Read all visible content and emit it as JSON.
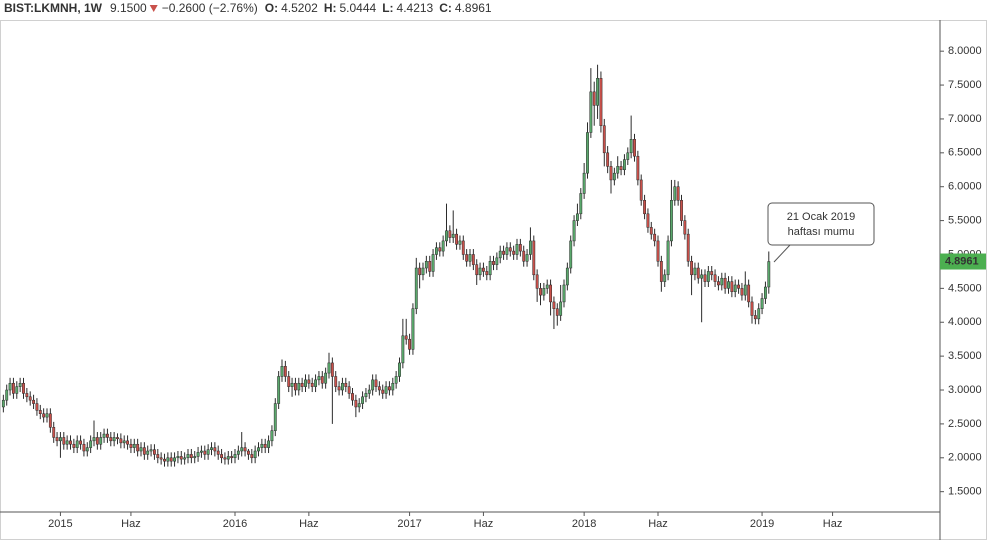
{
  "chart_data": {
    "type": "candlestick",
    "header": {
      "symbol": "BIST:LKMNH, 1W",
      "price": "9.1500",
      "change": "−0.2600 (−2.76%)",
      "fields": [
        {
          "label": "O:",
          "value": "4.5202"
        },
        {
          "label": "H:",
          "value": "5.0444"
        },
        {
          "label": "L:",
          "value": "4.4213"
        },
        {
          "label": "C:",
          "value": "4.8961"
        }
      ]
    },
    "annotation": [
      "21 Ocak 2019",
      "haftası mumu"
    ],
    "up_color": "#5aa86c",
    "down_color": "#c9514b",
    "outline_color": "#2b2b2b",
    "last_price_color": "#4caf50",
    "xlim": [
      -1,
      279
    ],
    "xticks": [
      {
        "value": 17,
        "label": "2015"
      },
      {
        "value": 38,
        "label": "Haz"
      },
      {
        "value": 69,
        "label": "2016"
      },
      {
        "value": 91,
        "label": "Haz"
      },
      {
        "value": 121,
        "label": "2017"
      },
      {
        "value": 143,
        "label": "Haz"
      },
      {
        "value": 173,
        "label": "2018"
      },
      {
        "value": 195,
        "label": "Haz"
      },
      {
        "value": 226,
        "label": "2019"
      },
      {
        "value": 247,
        "label": "Haz"
      }
    ],
    "ylim": [
      1.2,
      8.46
    ],
    "yticks": [
      {
        "value": 1.5,
        "label": "1.5000"
      },
      {
        "value": 2,
        "label": "2.0000"
      },
      {
        "value": 2.5,
        "label": "2.5000"
      },
      {
        "value": 3,
        "label": "3.0000"
      },
      {
        "value": 3.5,
        "label": "3.5000"
      },
      {
        "value": 4,
        "label": "4.0000"
      },
      {
        "value": 4.5,
        "label": "4.5000"
      },
      {
        "value": 5,
        "label": "5.0000"
      },
      {
        "value": 5.5,
        "label": "5.5000"
      },
      {
        "value": 6,
        "label": "6.0000"
      },
      {
        "value": 6.5,
        "label": "6.5000"
      },
      {
        "value": 7,
        "label": "7.0000"
      },
      {
        "value": 7.5,
        "label": "7.5000"
      },
      {
        "value": 8,
        "label": "8.0000"
      }
    ],
    "open": [
      2.75,
      2.85,
      3.0,
      3.1,
      2.95,
      3.05,
      3.1,
      2.95,
      2.9,
      2.85,
      2.8,
      2.7,
      2.65,
      2.6,
      2.65,
      2.45,
      2.3,
      2.25,
      2.3,
      2.2,
      2.25,
      2.2,
      2.15,
      2.25,
      2.2,
      2.1,
      2.15,
      2.25,
      2.3,
      2.2,
      2.3,
      2.35,
      2.3,
      2.25,
      2.3,
      2.28,
      2.22,
      2.25,
      2.2,
      2.15,
      2.2,
      2.1,
      2.15,
      2.05,
      2.1,
      2.12,
      2.05,
      2.0,
      1.98,
      1.95,
      2.0,
      1.95,
      2.0,
      2.02,
      1.98,
      2.0,
      2.05,
      2.0,
      2.02,
      2.08,
      2.1,
      2.05,
      2.12,
      2.15,
      2.1,
      2.05,
      2.0,
      1.98,
      2.02,
      2.0,
      2.05,
      2.1,
      2.15,
      2.1,
      2.05,
      2.0,
      2.1,
      2.15,
      2.2,
      2.15,
      2.25,
      2.4,
      2.8,
      3.2,
      3.35,
      3.2,
      3.05,
      3.1,
      3.0,
      3.1,
      3.05,
      3.15,
      3.1,
      3.05,
      3.15,
      3.2,
      3.1,
      3.25,
      3.4,
      3.2,
      3.05,
      3.0,
      3.1,
      3.05,
      2.95,
      2.85,
      2.75,
      2.8,
      2.9,
      2.95,
      3.0,
      3.15,
      3.05,
      3.0,
      2.95,
      3.05,
      3.0,
      3.1,
      3.2,
      3.4,
      3.8,
      3.75,
      3.6,
      4.2,
      4.8,
      4.7,
      4.8,
      4.9,
      4.75,
      5.0,
      5.1,
      5.05,
      5.2,
      5.35,
      5.25,
      5.3,
      5.15,
      5.2,
      5.0,
      4.9,
      5.0,
      4.85,
      4.7,
      4.8,
      4.75,
      4.7,
      4.9,
      4.85,
      4.95,
      5.05,
      5.0,
      5.1,
      5.05,
      5.0,
      5.15,
      5.05,
      4.9,
      5.0,
      5.2,
      4.7,
      4.5,
      4.4,
      4.5,
      4.55,
      4.3,
      4.2,
      4.1,
      4.3,
      4.55,
      4.8,
      5.2,
      5.5,
      5.6,
      5.9,
      6.2,
      6.8,
      7.4,
      7.2,
      7.6,
      6.9,
      6.5,
      6.3,
      6.1,
      6.2,
      6.3,
      6.25,
      6.4,
      6.5,
      6.7,
      6.45,
      6.1,
      5.8,
      5.6,
      5.4,
      5.3,
      5.2,
      4.9,
      4.6,
      4.7,
      5.2,
      5.8,
      6.0,
      5.8,
      5.5,
      5.3,
      4.9,
      4.7,
      4.8,
      4.65,
      4.7,
      4.6,
      4.75,
      4.7,
      4.6,
      4.55,
      4.65,
      4.5,
      4.6,
      4.45,
      4.55,
      4.5,
      4.4,
      4.55,
      4.3,
      4.1,
      4.05,
      4.2,
      4.35,
      4.5202
    ],
    "high": [
      2.93,
      3.08,
      3.18,
      3.18,
      3.13,
      3.18,
      3.18,
      3.03,
      2.98,
      2.93,
      2.88,
      2.78,
      2.73,
      2.73,
      2.73,
      2.53,
      2.38,
      2.38,
      2.38,
      2.33,
      2.33,
      2.28,
      2.33,
      2.33,
      2.28,
      2.23,
      2.33,
      2.55,
      2.38,
      2.38,
      2.43,
      2.43,
      2.38,
      2.38,
      2.36,
      2.36,
      2.33,
      2.33,
      2.28,
      2.28,
      2.28,
      2.23,
      2.23,
      2.18,
      2.2,
      2.2,
      2.13,
      2.08,
      2.06,
      2.08,
      2.08,
      2.08,
      2.1,
      2.1,
      2.08,
      2.13,
      2.13,
      2.1,
      2.16,
      2.18,
      2.18,
      2.2,
      2.23,
      2.23,
      2.18,
      2.13,
      2.08,
      2.1,
      2.1,
      2.13,
      2.18,
      2.38,
      2.23,
      2.13,
      2.13,
      2.18,
      2.23,
      2.28,
      2.28,
      2.33,
      2.48,
      2.88,
      3.28,
      3.45,
      3.43,
      3.28,
      3.18,
      3.18,
      3.18,
      3.18,
      3.23,
      3.23,
      3.18,
      3.23,
      3.28,
      3.28,
      3.33,
      3.55,
      3.48,
      3.28,
      3.13,
      3.18,
      3.18,
      3.13,
      3.03,
      2.93,
      2.88,
      2.98,
      3.03,
      3.08,
      3.23,
      3.23,
      3.13,
      3.08,
      3.13,
      3.13,
      3.18,
      3.28,
      3.48,
      4.05,
      4.05,
      3.83,
      4.28,
      4.95,
      4.88,
      4.88,
      4.98,
      4.98,
      5.08,
      5.18,
      5.18,
      5.28,
      5.75,
      5.43,
      5.65,
      5.38,
      5.28,
      5.28,
      5.08,
      5.08,
      5.08,
      4.93,
      4.88,
      4.88,
      4.83,
      4.98,
      4.98,
      5.03,
      5.13,
      5.13,
      5.18,
      5.18,
      5.13,
      5.23,
      5.23,
      5.13,
      5.08,
      5.4,
      5.28,
      4.78,
      4.58,
      4.58,
      4.63,
      4.63,
      4.38,
      4.28,
      4.55,
      4.63,
      4.88,
      5.28,
      5.58,
      5.75,
      5.98,
      6.35,
      6.95,
      7.75,
      7.55,
      7.8,
      7.7,
      7.0,
      6.6,
      6.38,
      6.28,
      6.45,
      6.38,
      6.48,
      6.58,
      7.05,
      6.78,
      6.53,
      6.18,
      5.88,
      5.68,
      5.48,
      5.38,
      5.28,
      4.98,
      4.78,
      5.28,
      6.1,
      6.1,
      6.08,
      5.88,
      5.58,
      5.38,
      4.98,
      4.88,
      4.88,
      4.78,
      4.78,
      4.83,
      4.83,
      4.78,
      4.68,
      4.73,
      4.73,
      4.68,
      4.68,
      4.63,
      4.63,
      4.58,
      4.75,
      4.63,
      4.38,
      4.18,
      4.28,
      4.43,
      4.6,
      5.0444
    ],
    "low": [
      2.67,
      2.77,
      2.92,
      2.87,
      2.87,
      2.97,
      2.87,
      2.82,
      2.77,
      2.72,
      2.62,
      2.57,
      2.52,
      2.52,
      2.37,
      2.22,
      2.17,
      2.0,
      2.12,
      2.12,
      2.12,
      2.07,
      2.07,
      2.12,
      2.02,
      2.02,
      2.07,
      2.17,
      2.12,
      2.12,
      2.22,
      2.22,
      2.17,
      2.17,
      2.2,
      2.14,
      2.14,
      2.12,
      2.07,
      2.07,
      2.02,
      2.02,
      1.97,
      1.97,
      2.02,
      1.97,
      1.92,
      1.9,
      1.87,
      1.87,
      1.87,
      1.87,
      1.92,
      1.9,
      1.9,
      1.92,
      1.92,
      1.92,
      1.94,
      2.0,
      1.97,
      1.97,
      2.04,
      2.02,
      1.97,
      1.92,
      1.9,
      1.9,
      1.92,
      1.92,
      1.97,
      2.02,
      2.02,
      1.97,
      1.92,
      1.92,
      2.02,
      2.07,
      2.07,
      2.07,
      2.17,
      2.32,
      2.72,
      3.12,
      3.12,
      2.97,
      2.9,
      2.92,
      2.92,
      2.97,
      2.97,
      3.02,
      2.97,
      2.97,
      3.07,
      3.02,
      3.02,
      3.17,
      2.5,
      2.97,
      2.92,
      2.92,
      2.97,
      2.87,
      2.77,
      2.6,
      2.67,
      2.72,
      2.82,
      2.87,
      2.92,
      2.97,
      2.92,
      2.87,
      2.87,
      2.92,
      2.92,
      3.02,
      3.12,
      3.32,
      3.67,
      3.52,
      3.52,
      4.12,
      4.5,
      4.62,
      4.72,
      4.67,
      4.67,
      4.92,
      4.97,
      4.97,
      5.12,
      5.17,
      5.17,
      5.07,
      5.07,
      4.92,
      4.82,
      4.82,
      4.77,
      4.55,
      4.62,
      4.67,
      4.62,
      4.62,
      4.77,
      4.77,
      4.87,
      4.92,
      4.92,
      4.97,
      4.92,
      4.92,
      4.97,
      4.82,
      4.82,
      4.92,
      4.62,
      4.3,
      4.25,
      4.32,
      4.42,
      4.1,
      3.9,
      3.95,
      4.02,
      4.22,
      4.47,
      4.72,
      5.12,
      5.42,
      5.52,
      5.82,
      6.12,
      6.72,
      6.9,
      7.0,
      6.8,
      6.3,
      6.2,
      5.9,
      6.02,
      6.12,
      6.17,
      6.17,
      6.32,
      6.42,
      6.37,
      6.02,
      5.72,
      5.52,
      5.32,
      5.22,
      5.12,
      4.82,
      4.45,
      4.52,
      4.62,
      5.12,
      5.72,
      5.72,
      5.42,
      5.22,
      4.82,
      4.4,
      4.62,
      4.57,
      4.0,
      4.52,
      4.52,
      4.62,
      4.52,
      4.47,
      4.47,
      4.42,
      4.42,
      4.37,
      4.37,
      4.42,
      4.32,
      4.32,
      4.22,
      3.98,
      3.97,
      3.97,
      4.12,
      4.27,
      4.4213
    ],
    "close": [
      2.85,
      3.0,
      3.1,
      2.95,
      3.05,
      3.1,
      2.95,
      2.9,
      2.85,
      2.8,
      2.7,
      2.65,
      2.6,
      2.65,
      2.45,
      2.3,
      2.25,
      2.3,
      2.2,
      2.25,
      2.2,
      2.15,
      2.25,
      2.2,
      2.1,
      2.15,
      2.25,
      2.3,
      2.2,
      2.3,
      2.35,
      2.3,
      2.25,
      2.3,
      2.28,
      2.22,
      2.25,
      2.2,
      2.15,
      2.2,
      2.1,
      2.15,
      2.05,
      2.1,
      2.12,
      2.05,
      2.0,
      1.98,
      1.95,
      2.0,
      1.95,
      2.0,
      2.02,
      1.98,
      2.0,
      2.05,
      2.0,
      2.02,
      2.08,
      2.1,
      2.05,
      2.12,
      2.15,
      2.1,
      2.05,
      2.0,
      1.98,
      2.02,
      2.0,
      2.05,
      2.1,
      2.15,
      2.1,
      2.05,
      2.0,
      2.1,
      2.15,
      2.2,
      2.15,
      2.25,
      2.4,
      2.8,
      3.2,
      3.35,
      3.2,
      3.05,
      3.1,
      3.0,
      3.1,
      3.05,
      3.15,
      3.1,
      3.05,
      3.15,
      3.2,
      3.1,
      3.25,
      3.4,
      3.2,
      3.05,
      3.0,
      3.1,
      3.05,
      2.95,
      2.85,
      2.75,
      2.8,
      2.9,
      2.95,
      3.0,
      3.15,
      3.05,
      3.0,
      2.95,
      3.05,
      3.0,
      3.1,
      3.2,
      3.4,
      3.8,
      3.75,
      3.6,
      4.2,
      4.8,
      4.7,
      4.8,
      4.9,
      4.75,
      5.0,
      5.1,
      5.05,
      5.2,
      5.35,
      5.25,
      5.3,
      5.15,
      5.2,
      5.0,
      4.9,
      5.0,
      4.85,
      4.7,
      4.8,
      4.75,
      4.7,
      4.9,
      4.85,
      4.95,
      5.05,
      5.0,
      5.1,
      5.05,
      5.0,
      5.15,
      5.05,
      4.9,
      5.0,
      5.2,
      4.7,
      4.5,
      4.4,
      4.5,
      4.55,
      4.3,
      4.2,
      4.1,
      4.3,
      4.55,
      4.8,
      5.2,
      5.5,
      5.6,
      5.9,
      6.2,
      6.8,
      7.4,
      7.2,
      7.6,
      6.9,
      6.5,
      6.3,
      6.1,
      6.2,
      6.3,
      6.25,
      6.4,
      6.5,
      6.7,
      6.45,
      6.1,
      5.8,
      5.6,
      5.4,
      5.3,
      5.2,
      4.9,
      4.6,
      4.7,
      5.2,
      5.8,
      6.0,
      5.8,
      5.5,
      5.3,
      4.9,
      4.7,
      4.8,
      4.65,
      4.7,
      4.6,
      4.75,
      4.7,
      4.6,
      4.55,
      4.65,
      4.5,
      4.6,
      4.45,
      4.55,
      4.5,
      4.4,
      4.55,
      4.3,
      4.1,
      4.05,
      4.2,
      4.35,
      4.52,
      4.8961
    ]
  }
}
